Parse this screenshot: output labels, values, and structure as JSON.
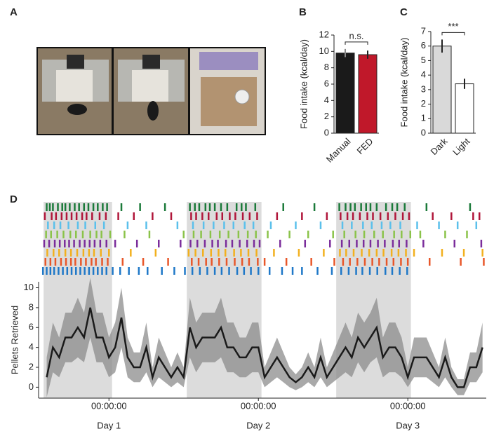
{
  "photo_panel": {
    "label": "A"
  },
  "chart_data": [
    {
      "type": "bar",
      "label": "B",
      "ylabel": "Food intake (kcal/day)",
      "categories": [
        "Manual",
        "FED"
      ],
      "values": [
        9.8,
        9.6
      ],
      "errors": [
        0.5,
        0.5
      ],
      "colors": [
        "#1a1a1a",
        "#c0182a"
      ],
      "ylim": [
        0,
        12
      ],
      "yticks": [
        0,
        2,
        4,
        6,
        8,
        10,
        12
      ],
      "annotation": "n.s."
    },
    {
      "type": "bar",
      "label": "C",
      "ylabel": "Food intake (kcal/day)",
      "categories": [
        "Dark",
        "Light"
      ],
      "values": [
        6.0,
        3.4
      ],
      "errors": [
        0.45,
        0.35
      ],
      "colors": [
        "#d9d9d9",
        "#ffffff"
      ],
      "ylim": [
        0,
        7
      ],
      "yticks": [
        0,
        1,
        2,
        3,
        4,
        5,
        6,
        7
      ],
      "annotation": "***"
    },
    {
      "type": "line",
      "label": "D",
      "ylabel": "Pellets Retrieved",
      "color": "#1a1a1a",
      "band_color": "#8c8c8c",
      "shade_color": "#dcdcdc",
      "x": [
        -10,
        -9,
        -8,
        -7,
        -6,
        -5,
        -4,
        -3,
        -2,
        -1,
        0,
        1,
        2,
        3,
        4,
        5,
        6,
        7,
        8,
        9,
        10,
        11,
        12,
        13,
        14,
        15,
        16,
        17,
        18,
        19,
        20,
        21,
        22,
        23,
        24,
        25,
        26,
        27,
        28,
        29,
        30,
        31,
        32,
        33,
        34,
        35,
        36,
        37,
        38,
        39,
        40,
        41,
        42,
        43,
        44,
        45,
        46,
        47,
        48,
        49,
        50,
        51,
        52,
        53,
        54,
        55,
        56,
        57,
        58,
        59,
        60
      ],
      "values": [
        1,
        4,
        3,
        5,
        5,
        6,
        5,
        8,
        5,
        5,
        3,
        4,
        7,
        3,
        2,
        2,
        4,
        1,
        3,
        2,
        1,
        2,
        1,
        6,
        4,
        5,
        5,
        5,
        6,
        4,
        4,
        3,
        3,
        4,
        4,
        1,
        2,
        3,
        2,
        1,
        0.5,
        1,
        2,
        1,
        3,
        1,
        2,
        3,
        4,
        3,
        5,
        4,
        5,
        6,
        3,
        4,
        4,
        3,
        1,
        3,
        3,
        3,
        2,
        1,
        3,
        1,
        0,
        0,
        2,
        2,
        4
      ],
      "errors": [
        2,
        2.5,
        2,
        2.5,
        2.5,
        3,
        2.5,
        3,
        2.5,
        2.5,
        2,
        2.5,
        3,
        2,
        1.5,
        1.5,
        2.5,
        1,
        2,
        1.5,
        1,
        1.5,
        1,
        3,
        2.5,
        2.5,
        2.5,
        2.5,
        3,
        2.5,
        2.5,
        2,
        2,
        2.5,
        2.5,
        1,
        1.5,
        2,
        1.5,
        1,
        0.8,
        1,
        1.5,
        1,
        2,
        1,
        1.5,
        2,
        2.5,
        2,
        2.5,
        2.5,
        2.5,
        3,
        2,
        2.5,
        2.5,
        2,
        1,
        2,
        2,
        2,
        1.5,
        1,
        2,
        1,
        0.8,
        0.8,
        1.5,
        1.5,
        2.5
      ],
      "xlim": [
        -11.3,
        60.6
      ],
      "ylim": [
        -1.1,
        10.6
      ],
      "yticks": [
        0,
        2,
        4,
        6,
        8,
        10
      ],
      "xticks": [
        {
          "value": 0,
          "label": "00:00:00"
        },
        {
          "value": 24,
          "label": "00:00:00"
        },
        {
          "value": 48,
          "label": "00:00:00"
        }
      ],
      "xtick_sublabels": [
        "Day 1",
        "Day 2",
        "Day 3"
      ],
      "shaded": [
        [
          -10.5,
          0.5
        ],
        [
          12.5,
          24.5
        ],
        [
          36.5,
          48.5
        ]
      ],
      "raster": [
        {
          "color": "#1b7a3a",
          "times": [
            -10,
            -9.5,
            -9,
            -8.2,
            -7.5,
            -7,
            -6.3,
            -5.5,
            -4.8,
            -4,
            -3.3,
            -2.5,
            -1.8,
            -1,
            -0.3,
            2,
            5,
            9,
            13,
            13.8,
            14.5,
            15.5,
            16.2,
            17,
            18,
            19,
            20.5,
            21.3,
            22,
            23.5,
            28,
            33,
            37,
            38,
            38.8,
            39.5,
            40.5,
            41.3,
            42,
            43,
            44.5,
            45.5,
            46.3,
            47.5,
            51,
            58
          ]
        },
        {
          "color": "#b0163a",
          "times": [
            -10.3,
            -9.2,
            -8.5,
            -7.6,
            -6.8,
            -6,
            -5.2,
            -4.3,
            -3.6,
            -2.7,
            -1.5,
            -0.5,
            1.5,
            4,
            7,
            10,
            13.2,
            14,
            15,
            16,
            17.3,
            18.2,
            19.4,
            20.3,
            21.5,
            22.6,
            23.8,
            27,
            31,
            35,
            37.2,
            38.3,
            39.2,
            40.3,
            41.5,
            42.4,
            43.6,
            44.8,
            46,
            47.2,
            48.2,
            52,
            55,
            58.5,
            59.5
          ]
        },
        {
          "color": "#5bc0eb",
          "times": [
            -9.8,
            -8.8,
            -7.8,
            -6.5,
            -5,
            -3.8,
            -2.2,
            -0.8,
            3,
            6,
            11,
            13.5,
            15.2,
            16.8,
            18.5,
            20,
            21.8,
            23.2,
            26,
            30,
            34,
            37.5,
            39,
            40.8,
            42.2,
            43.8,
            45.2,
            46.8,
            49.5,
            53,
            56,
            59
          ]
        },
        {
          "color": "#8bc34a",
          "times": [
            -10.1,
            -9.3,
            -8.3,
            -7.3,
            -6.2,
            -5.3,
            -4.2,
            -3,
            -2,
            -1.2,
            0.2,
            2.5,
            6.5,
            12,
            13.6,
            14.8,
            16.3,
            17.8,
            19.2,
            20.8,
            22.3,
            23.6,
            25.5,
            29,
            32,
            36,
            37.8,
            39.6,
            41,
            42.6,
            44,
            45.8,
            47,
            48.4,
            50,
            54,
            57.5
          ]
        },
        {
          "color": "#7b2d9b",
          "times": [
            -10.4,
            -9.6,
            -8.7,
            -7.9,
            -7.1,
            -6.4,
            -5.6,
            -4.7,
            -3.9,
            -3.1,
            -2.3,
            -1.4,
            -0.4,
            1,
            4.5,
            8,
            11.5,
            13.1,
            14.2,
            15.4,
            16.6,
            17.5,
            18.8,
            19.8,
            21,
            22.2,
            23.3,
            24.2,
            27.5,
            31.5,
            35.5,
            37.4,
            38.6,
            39.8,
            40.9,
            42,
            43.2,
            44.3,
            45.6,
            46.6,
            47.8,
            50.5,
            55.5,
            59.8
          ]
        },
        {
          "color": "#f2b01e",
          "times": [
            -9.9,
            -8.9,
            -8,
            -7,
            -6.1,
            -5.1,
            -4.1,
            -3.2,
            -2.4,
            -1.3,
            0,
            3.5,
            7.5,
            12.8,
            13.9,
            15.1,
            16.4,
            17.6,
            18.7,
            20.1,
            21.2,
            22.4,
            23.7,
            26.5,
            30.5,
            34.5,
            37.1,
            38.1,
            39.3,
            40.6,
            41.8,
            43,
            44.1,
            45.4,
            46.5,
            47.7,
            49,
            53.5,
            57,
            60
          ]
        },
        {
          "color": "#e8572a",
          "times": [
            -10.2,
            -9.4,
            -8.6,
            -7.7,
            -6.9,
            -6.1,
            -5.4,
            -4.5,
            -3.7,
            -2.8,
            -2.1,
            -1.1,
            -0.2,
            2.2,
            5.5,
            9.5,
            13.3,
            14.4,
            15.6,
            16.5,
            17.7,
            18.9,
            20.2,
            21.4,
            22.5,
            23.9,
            25,
            28.5,
            32.5,
            36.2,
            37.6,
            38.7,
            39.9,
            41.1,
            42.3,
            43.4,
            44.6,
            45.7,
            46.9,
            48,
            51.5,
            56.5,
            60.2
          ]
        },
        {
          "color": "#1f78c8",
          "times": [
            -10.6,
            -10,
            -9.4,
            -8.8,
            -8.1,
            -7.4,
            -6.7,
            -6,
            -5.3,
            -4.6,
            -3.9,
            -3.2,
            -2.5,
            -1.8,
            -1.1,
            -0.4,
            0.6,
            1.8,
            3.2,
            4.8,
            6.2,
            8.5,
            10.5,
            12.2,
            13.4,
            14.6,
            15.8,
            17,
            18.1,
            19.3,
            20.6,
            21.7,
            22.8,
            24,
            25.8,
            27.8,
            29.5,
            31,
            33.5,
            35.8,
            37.3,
            38.5,
            39.7,
            40.7,
            41.9,
            43.1,
            44.4,
            45.5,
            46.7,
            47.9
          ]
        }
      ]
    }
  ]
}
